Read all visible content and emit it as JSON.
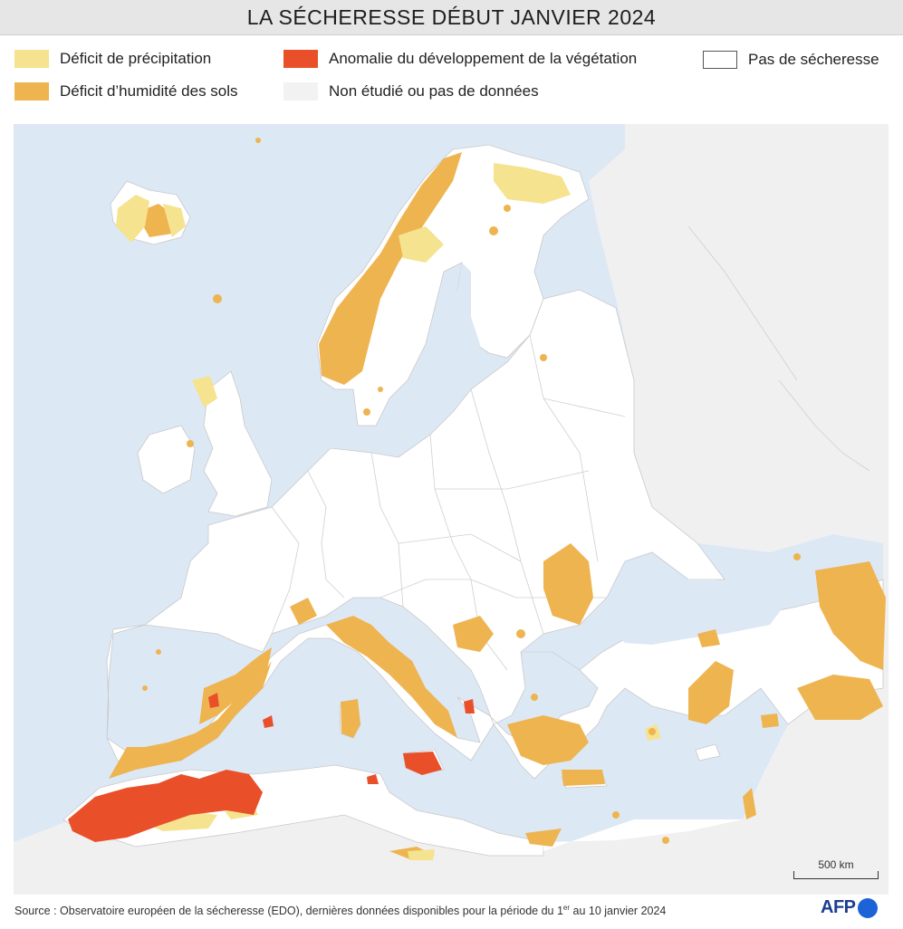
{
  "title": "LA SÉCHERESSE DÉBUT JANVIER 2024",
  "legend": {
    "precip": {
      "label": "Déficit de précipitation",
      "color": "#f5e38f"
    },
    "soil": {
      "label": "Déficit d’humidité des sols",
      "color": "#eeb450"
    },
    "veg": {
      "label": "Anomalie du développement de la végétation",
      "color": "#e9502a"
    },
    "nodata": {
      "label": "Non étudié ou pas de données",
      "color": "#f2f2f2"
    },
    "nodrought": {
      "label": "Pas de sécheresse",
      "color": "#ffffff"
    }
  },
  "colors": {
    "sea": "#dde8f5",
    "outside": "#f0f0f0",
    "land": "#ffffff",
    "border": "#c9c9c9"
  },
  "scale": {
    "label": "500 km"
  },
  "source": {
    "prefix": "Source : Observatoire européen de la sécheresse (EDO), dernières données disponibles pour la période du 1",
    "sup": "er",
    "suffix": " au 10 janvier 2024"
  },
  "logo": {
    "text": "AFP"
  }
}
